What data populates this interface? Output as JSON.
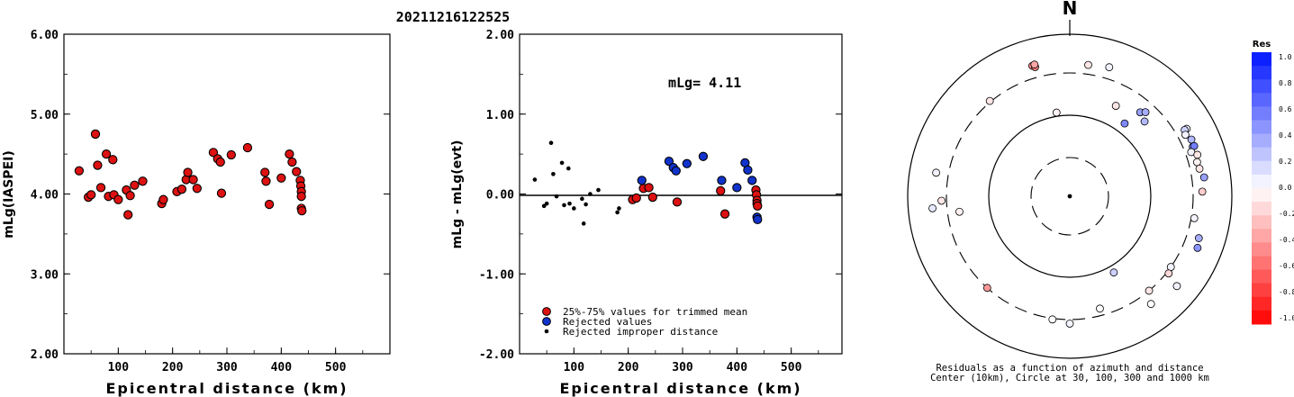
{
  "title": "20211216122525",
  "left_panel": {
    "ylabel": "mLg(IASPEI)",
    "xlabel": "Epicentral distance (km)",
    "yticks": [
      "6.00",
      "5.00",
      "4.00",
      "3.00",
      "2.00"
    ],
    "xticks": [
      "100",
      "200",
      "300",
      "400",
      "500"
    ]
  },
  "mid_panel": {
    "ylabel": "mLg - mLg(evt)",
    "xlabel": "Epicentral distance (km)",
    "yticks": [
      "2.00",
      "1.00",
      "0.00",
      "-1.00",
      "-2.00"
    ],
    "xticks": [
      "100",
      "200",
      "300",
      "400",
      "500"
    ],
    "annotation": "mLg= 4.11",
    "legend": [
      {
        "label": "25%-75% values for trimmed mean",
        "color": "#dd1111"
      },
      {
        "label": "Rejected values",
        "color": "#1133cc"
      },
      {
        "label": "Rejected improper distance",
        "color": "#000000"
      }
    ]
  },
  "right_panel": {
    "north_label": "N",
    "caption_line1": "Residuals as a function of azimuth and distance",
    "caption_line2": "Center (10km), Circle at 30, 100, 300 and 1000 km",
    "colorbar_title": "Res",
    "colorbar_ticks": [
      "1.0",
      "0.8",
      "0.6",
      "0.4",
      "0.2",
      "0.0",
      "-0.2",
      "-0.4",
      "-0.6",
      "-0.8",
      "-1.0"
    ]
  },
  "colors": {
    "red": "#dd1111",
    "blue": "#1133cc",
    "black": "#000000"
  },
  "chart_data": [
    {
      "type": "scatter",
      "title": "20211216122525",
      "xlabel": "Epicentral distance (km)",
      "ylabel": "mLg(IASPEI)",
      "xlim": [
        0,
        600
      ],
      "ylim": [
        2.0,
        6.0
      ],
      "grid": false,
      "points": [
        [
          28,
          4.29
        ],
        [
          45,
          3.96
        ],
        [
          50,
          3.99
        ],
        [
          58,
          4.75
        ],
        [
          62,
          4.36
        ],
        [
          68,
          4.08
        ],
        [
          78,
          4.5
        ],
        [
          82,
          3.97
        ],
        [
          90,
          4.43
        ],
        [
          92,
          3.99
        ],
        [
          100,
          3.93
        ],
        [
          115,
          4.05
        ],
        [
          118,
          3.74
        ],
        [
          122,
          3.98
        ],
        [
          130,
          4.11
        ],
        [
          145,
          4.16
        ],
        [
          180,
          3.88
        ],
        [
          183,
          3.93
        ],
        [
          208,
          4.03
        ],
        [
          217,
          4.06
        ],
        [
          225,
          4.18
        ],
        [
          228,
          4.27
        ],
        [
          238,
          4.18
        ],
        [
          245,
          4.07
        ],
        [
          275,
          4.52
        ],
        [
          283,
          4.44
        ],
        [
          288,
          4.4
        ],
        [
          290,
          4.01
        ],
        [
          308,
          4.49
        ],
        [
          338,
          4.58
        ],
        [
          370,
          4.27
        ],
        [
          372,
          4.16
        ],
        [
          378,
          3.87
        ],
        [
          400,
          4.2
        ],
        [
          415,
          4.5
        ],
        [
          420,
          4.4
        ],
        [
          428,
          4.28
        ],
        [
          435,
          4.17
        ],
        [
          436,
          4.1
        ],
        [
          437,
          4.03
        ],
        [
          437,
          3.97
        ],
        [
          437,
          3.82
        ],
        [
          438,
          3.79
        ]
      ]
    },
    {
      "type": "scatter",
      "xlabel": "Epicentral distance (km)",
      "ylabel": "mLg - mLg(evt)",
      "xlim": [
        0,
        600
      ],
      "ylim": [
        -2.0,
        2.0
      ],
      "reference_line": 0.0,
      "annotation": "mLg= 4.11",
      "series": [
        {
          "name": "25%-75% values for trimmed mean",
          "points": [
            [
              208,
              -0.07
            ],
            [
              215,
              -0.05
            ],
            [
              228,
              0.07
            ],
            [
              238,
              0.08
            ],
            [
              245,
              -0.04
            ],
            [
              290,
              -0.1
            ],
            [
              370,
              0.04
            ],
            [
              378,
              -0.25
            ],
            [
              435,
              0.05
            ],
            [
              436,
              -0.01
            ],
            [
              437,
              -0.08
            ],
            [
              437,
              -0.12
            ],
            [
              438,
              -0.15
            ]
          ]
        },
        {
          "name": "Rejected values",
          "points": [
            [
              225,
              0.17
            ],
            [
              275,
              0.41
            ],
            [
              283,
              0.33
            ],
            [
              288,
              0.29
            ],
            [
              308,
              0.38
            ],
            [
              338,
              0.47
            ],
            [
              372,
              0.17
            ],
            [
              400,
              0.08
            ],
            [
              415,
              0.39
            ],
            [
              420,
              0.3
            ],
            [
              428,
              0.17
            ],
            [
              437,
              -0.29
            ],
            [
              438,
              -0.32
            ]
          ]
        },
        {
          "name": "Rejected improper distance",
          "points": [
            [
              28,
              0.18
            ],
            [
              45,
              -0.15
            ],
            [
              50,
              -0.12
            ],
            [
              58,
              0.64
            ],
            [
              62,
              0.25
            ],
            [
              68,
              -0.03
            ],
            [
              78,
              0.39
            ],
            [
              82,
              -0.14
            ],
            [
              90,
              0.32
            ],
            [
              92,
              -0.12
            ],
            [
              100,
              -0.18
            ],
            [
              115,
              -0.06
            ],
            [
              118,
              -0.37
            ],
            [
              122,
              -0.13
            ],
            [
              130,
              0.0
            ],
            [
              145,
              0.05
            ],
            [
              180,
              -0.23
            ],
            [
              183,
              -0.18
            ]
          ]
        }
      ]
    },
    {
      "type": "scatter",
      "polar": true,
      "rings_km": [
        30,
        100,
        300,
        1000
      ],
      "center_km": 10,
      "colorbar": {
        "min": -1.0,
        "max": 1.0
      },
      "points": [
        {
          "az": 344,
          "dist": 440,
          "res": -0.45
        },
        {
          "az": 345,
          "dist": 415,
          "res": -0.5
        },
        {
          "az": 345,
          "dist": 450,
          "res": -0.35
        },
        {
          "az": 320,
          "dist": 310,
          "res": -0.1
        },
        {
          "az": 8,
          "dist": 400,
          "res": -0.1
        },
        {
          "az": 17,
          "dist": 430,
          "res": 0.05
        },
        {
          "az": 27,
          "dist": 170,
          "res": -0.1
        },
        {
          "az": 37,
          "dist": 130,
          "res": 0.5
        },
        {
          "az": 40,
          "dist": 210,
          "res": 0.4
        },
        {
          "az": 42,
          "dist": 230,
          "res": 0.35
        },
        {
          "az": 45,
          "dist": 190,
          "res": 0.3
        },
        {
          "az": 351,
          "dist": 110,
          "res": -0.05
        },
        {
          "az": 60,
          "dist": 430,
          "res": 0.05
        },
        {
          "az": 60,
          "dist": 400,
          "res": 0.2
        },
        {
          "az": 62,
          "dist": 380,
          "res": 0.05
        },
        {
          "az": 65,
          "dist": 420,
          "res": 0.3
        },
        {
          "az": 68,
          "dist": 400,
          "res": 0.45
        },
        {
          "az": 68,
          "dist": 420,
          "res": 0.55
        },
        {
          "az": 70,
          "dist": 360,
          "res": 0.05
        },
        {
          "az": 72,
          "dist": 420,
          "res": -0.1
        },
        {
          "az": 75,
          "dist": 390,
          "res": -0.05
        },
        {
          "az": 78,
          "dist": 400,
          "res": -0.1
        },
        {
          "az": 82,
          "dist": 440,
          "res": 0.4
        },
        {
          "az": 88,
          "dist": 400,
          "res": -0.2
        },
        {
          "az": 280,
          "dist": 440,
          "res": 0.05
        },
        {
          "az": 265,
          "dist": 470,
          "res": 0.1
        },
        {
          "az": 268,
          "dist": 350,
          "res": -0.1
        },
        {
          "az": 262,
          "dist": 220,
          "res": -0.05
        },
        {
          "az": 100,
          "dist": 330,
          "res": 0.05
        },
        {
          "az": 108,
          "dist": 440,
          "res": 0.35
        },
        {
          "az": 112,
          "dist": 470,
          "res": 0.45
        },
        {
          "az": 125,
          "dist": 300,
          "res": 0.05
        },
        {
          "az": 128,
          "dist": 320,
          "res": -0.15
        },
        {
          "az": 140,
          "dist": 300,
          "res": -0.1
        },
        {
          "az": 143,
          "dist": 430,
          "res": 0.0
        },
        {
          "az": 130,
          "dist": 500,
          "res": 0.05
        },
        {
          "az": 150,
          "dist": 120,
          "res": 0.2
        },
        {
          "az": 165,
          "dist": 250,
          "res": 0.0
        },
        {
          "az": 188,
          "dist": 310,
          "res": 0.0
        },
        {
          "az": 180,
          "dist": 340,
          "res": 0.05
        },
        {
          "az": 222,
          "dist": 300,
          "res": -0.4
        }
      ]
    }
  ]
}
